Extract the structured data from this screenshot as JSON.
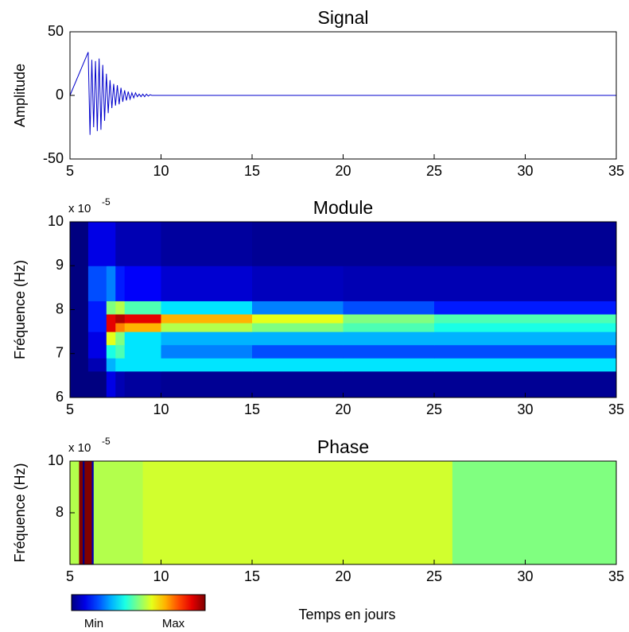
{
  "chart_data": [
    {
      "type": "line",
      "title": "Signal",
      "ylabel": "Amplitude",
      "xlim": [
        5,
        35
      ],
      "xticks": [
        5,
        10,
        15,
        20,
        25,
        30,
        35
      ],
      "ylim": [
        -50,
        50
      ],
      "yticks": [
        -50,
        0,
        50
      ],
      "x": [
        5,
        6,
        6.1,
        6.2,
        6.3,
        6.4,
        6.5,
        6.6,
        6.7,
        6.8,
        6.9,
        7.0,
        7.1,
        7.2,
        7.3,
        7.4,
        7.5,
        7.6,
        7.7,
        7.8,
        7.9,
        8.0,
        8.1,
        8.2,
        8.3,
        8.4,
        8.5,
        8.6,
        8.7,
        8.8,
        8.9,
        9.0,
        9.1,
        9.2,
        9.3,
        9.4,
        9.5,
        10,
        35
      ],
      "series": [
        {
          "color": "#0000cc",
          "values": [
            0,
            34,
            -31,
            28,
            -25,
            27,
            -28,
            29,
            -27,
            24,
            -20,
            17,
            -14,
            12,
            -10,
            9,
            -8,
            8,
            -7,
            6,
            -5,
            4,
            -4,
            3,
            -3,
            2,
            -2,
            2,
            -1,
            1,
            -1,
            1,
            -1,
            1,
            -0.5,
            0.5,
            0,
            0,
            0
          ]
        }
      ]
    },
    {
      "type": "heatmap",
      "title": "Module",
      "ylabel": "Fréquence (Hz)",
      "y_scale_base": "x 10",
      "y_scale_exponent": "-5",
      "xlim": [
        5,
        35
      ],
      "xticks": [
        5,
        10,
        15,
        20,
        25,
        30,
        35
      ],
      "ylim": [
        6,
        10
      ],
      "yticks": [
        6,
        7,
        8,
        9,
        10
      ],
      "zlim": [
        0,
        1
      ],
      "x": [
        5,
        6,
        7,
        7.5,
        8,
        10,
        15,
        20,
        25,
        35
      ],
      "y": [
        6,
        6.6,
        6.9,
        7.2,
        7.5,
        7.7,
        7.9,
        8.2,
        9,
        10
      ],
      "z": [
        [
          0,
          0,
          0.1,
          0.05,
          0.03,
          0.02,
          0.02,
          0.02,
          0.02
        ],
        [
          0,
          0.05,
          0.3,
          0.35,
          0.35,
          0.35,
          0.35,
          0.35,
          0.35
        ],
        [
          0,
          0.1,
          0.4,
          0.45,
          0.35,
          0.25,
          0.2,
          0.2,
          0.2
        ],
        [
          0,
          0.1,
          0.6,
          0.5,
          0.35,
          0.3,
          0.3,
          0.3,
          0.3
        ],
        [
          0,
          0.15,
          0.9,
          0.75,
          0.7,
          0.55,
          0.5,
          0.45,
          0.4
        ],
        [
          0,
          0.15,
          0.9,
          0.95,
          0.9,
          0.7,
          0.6,
          0.5,
          0.45
        ],
        [
          0,
          0.15,
          0.5,
          0.55,
          0.45,
          0.35,
          0.25,
          0.2,
          0.15
        ],
        [
          0,
          0.2,
          0.25,
          0.15,
          0.12,
          0.08,
          0.06,
          0.05,
          0.05
        ],
        [
          0,
          0.1,
          0.1,
          0.05,
          0.05,
          0.03,
          0.02,
          0.02,
          0.02
        ]
      ]
    },
    {
      "type": "heatmap",
      "title": "Phase",
      "ylabel": "Fréquence (Hz)",
      "y_scale_base": "x 10",
      "y_scale_exponent": "-5",
      "xlabel": "Temps en jours",
      "xlim": [
        5,
        35
      ],
      "xticks": [
        5,
        10,
        15,
        20,
        25,
        30,
        35
      ],
      "ylim": [
        6,
        10
      ],
      "yticks": [
        8,
        10
      ],
      "zlim": [
        0,
        1
      ],
      "x": [
        5,
        5.5,
        5.7,
        5.8,
        6.2,
        6.3,
        9,
        26,
        35
      ],
      "y": [
        6,
        10
      ],
      "z": [
        [
          0.55,
          1.0,
          0.0,
          1.0,
          0.05,
          0.55,
          0.58,
          0.5
        ]
      ],
      "colorbar": {
        "min_label": "Min",
        "max_label": "Max"
      }
    }
  ]
}
